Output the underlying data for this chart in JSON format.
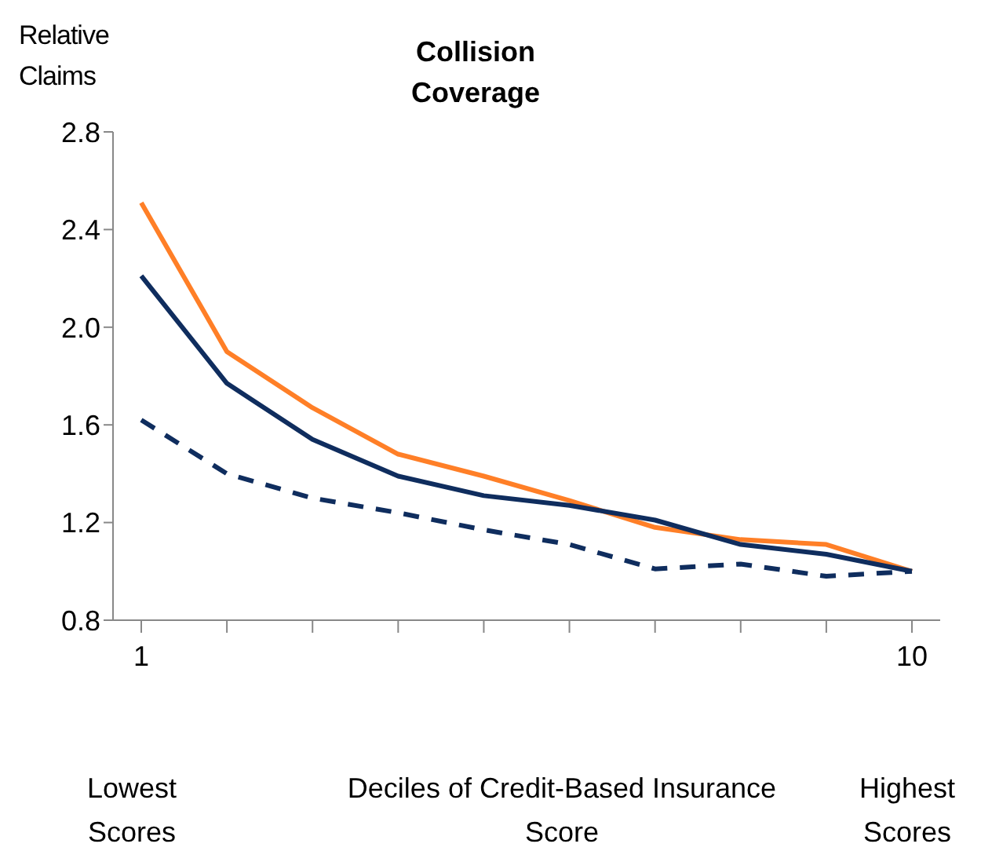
{
  "chart_data": {
    "type": "line",
    "title": "Collision Coverage",
    "ylabel": "Relative Claims",
    "xlabel": "Deciles of Credit-Based Insurance Score",
    "categories": [
      "1",
      null,
      null,
      null,
      null,
      null,
      null,
      null,
      null,
      "10"
    ],
    "annotations": [
      "Lowest Scores",
      "Highest Scores"
    ],
    "series": [
      {
        "color": "#ff7f27",
        "values": [
          2.51,
          1.9,
          1.67,
          1.48,
          1.39,
          1.29,
          1.18,
          1.13,
          1.11,
          1.0
        ]
      },
      {
        "color": "#0f2d5e",
        "values": [
          2.21,
          1.77,
          1.54,
          1.39,
          1.31,
          1.27,
          1.21,
          1.11,
          1.07,
          1.0
        ]
      },
      {
        "color": "#0f2d5e",
        "line_style": "dashed",
        "values": [
          1.62,
          1.4,
          1.3,
          1.24,
          1.17,
          1.11,
          1.01,
          1.03,
          0.98,
          1.0
        ]
      }
    ],
    "ylim": [
      0.8,
      2.8
    ],
    "yticks": [
      {
        "value": 0.8,
        "label": "0.8"
      },
      {
        "value": 1.2,
        "label": "1.2"
      },
      {
        "value": 1.6,
        "label": "1.6"
      },
      {
        "value": 2.0,
        "label": "2.0"
      },
      {
        "value": 2.4,
        "label": "2.4"
      },
      {
        "value": 2.8,
        "label": "2.8"
      }
    ],
    "grid": false,
    "legend": false,
    "marker": "none"
  }
}
